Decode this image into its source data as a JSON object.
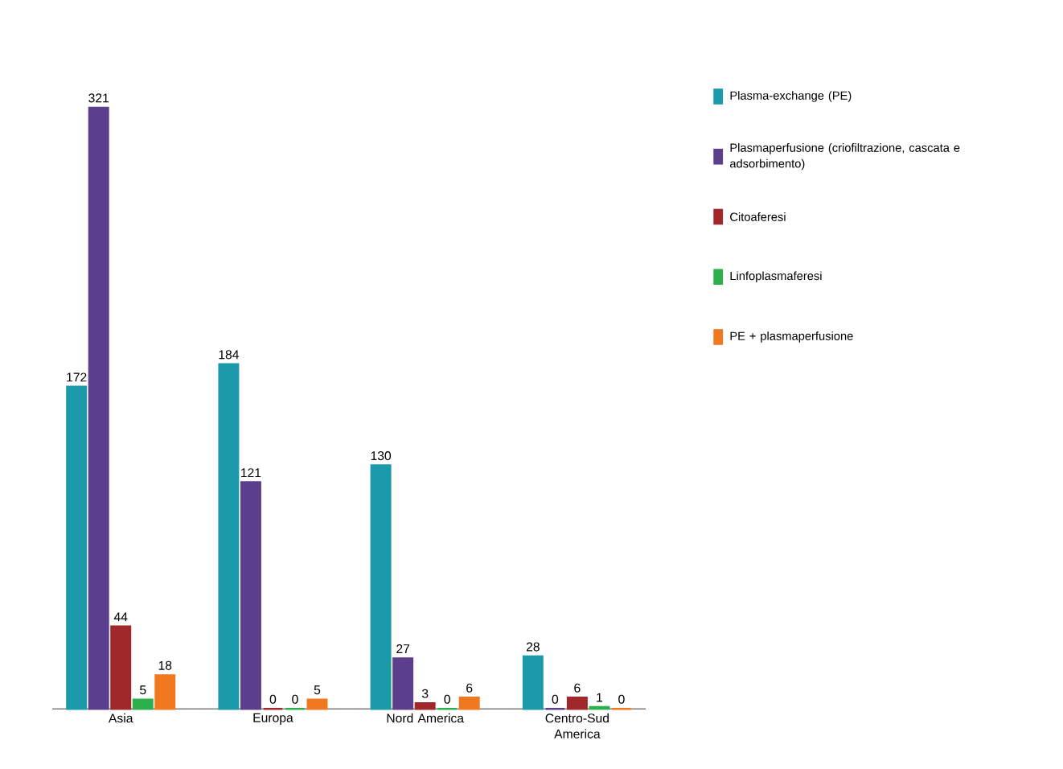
{
  "chart_data": {
    "type": "bar",
    "categories": [
      "Asia",
      "Europa",
      "Nord America",
      "Centro-Sud America"
    ],
    "series": [
      {
        "name": "Plasma-exchange (PE)",
        "color": "#1a9aaa",
        "values": [
          172,
          184,
          130,
          28
        ]
      },
      {
        "name": "Plasmaperfusione (criofiltrazione, cascata e adsorbimento)",
        "color": "#5b3e8c",
        "values": [
          321,
          121,
          27,
          0
        ]
      },
      {
        "name": "Citoaferesi",
        "color": "#a0282a",
        "values": [
          44,
          0,
          3,
          6
        ]
      },
      {
        "name": "Linfoplasmaferesi",
        "color": "#2cb04c",
        "values": [
          5,
          0,
          0,
          1
        ]
      },
      {
        "name": "PE + plasmaperfusione",
        "color": "#f0781e",
        "values": [
          18,
          5,
          6,
          0
        ]
      }
    ],
    "data_labels": true,
    "legend": "right"
  }
}
